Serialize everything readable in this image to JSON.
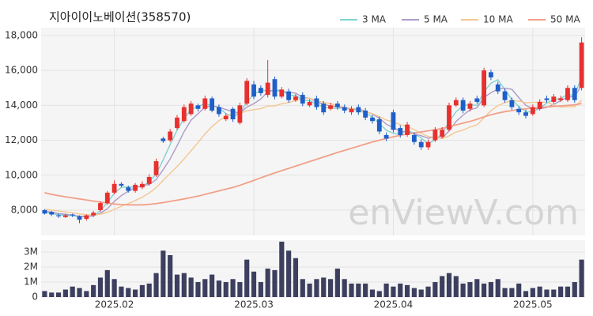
{
  "chart_data": {
    "type": "candlestick",
    "title": "지아이이노베이션(358570)",
    "watermark": "enViewV.com",
    "categories": [
      null,
      null,
      null,
      null,
      null,
      null,
      null,
      null,
      null,
      null,
      "2025.02",
      null,
      null,
      null,
      null,
      null,
      null,
      null,
      null,
      null,
      null,
      null,
      null,
      null,
      null,
      null,
      null,
      null,
      null,
      null,
      "2025.03",
      null,
      null,
      null,
      null,
      null,
      null,
      null,
      null,
      null,
      null,
      null,
      null,
      null,
      null,
      null,
      null,
      null,
      null,
      null,
      "2025.04",
      null,
      null,
      null,
      null,
      null,
      null,
      null,
      null,
      null,
      null,
      null,
      null,
      null,
      null,
      null,
      null,
      null,
      null,
      null,
      "2025.05",
      null,
      null,
      null,
      null,
      null,
      null,
      null
    ],
    "open": [
      8000,
      7900,
      7700,
      7600,
      7750,
      7650,
      7500,
      7700,
      8000,
      8400,
      9000,
      9500,
      9300,
      9100,
      9300,
      9500,
      10000,
      12100,
      12000,
      12700,
      13100,
      13500,
      14000,
      13800,
      14400,
      13900,
      13200,
      13800,
      13000,
      14100,
      15200,
      15000,
      14600,
      15500,
      14500,
      14800,
      14300,
      14600,
      14000,
      14400,
      14100,
      13800,
      14100,
      13900,
      13600,
      13900,
      13700,
      13300,
      13200,
      12300,
      13600,
      12700,
      12300,
      12300,
      11900,
      11600,
      12000,
      12200,
      12600,
      14000,
      14300,
      13800,
      14400,
      14000,
      15900,
      15200,
      14800,
      14300,
      13800,
      13600,
      13500,
      13800,
      14400,
      14200,
      14300,
      14300,
      15000,
      15000
    ],
    "high": [
      8050,
      7950,
      7800,
      7800,
      7800,
      7700,
      7750,
      7950,
      8500,
      9100,
      9700,
      9600,
      9400,
      9550,
      9650,
      10050,
      10950,
      12200,
      12650,
      13450,
      14050,
      14250,
      14100,
      14550,
      14500,
      14050,
      13550,
      13900,
      14150,
      15550,
      15400,
      15150,
      16600,
      15650,
      15050,
      14950,
      14650,
      14750,
      14350,
      14550,
      14250,
      14150,
      14250,
      14050,
      13950,
      14050,
      13850,
      13450,
      13350,
      12450,
      13750,
      12850,
      13050,
      12450,
      12050,
      12050,
      12750,
      12750,
      14150,
      14450,
      14450,
      14250,
      14550,
      16150,
      16050,
      15350,
      14950,
      14450,
      13950,
      13750,
      14050,
      14350,
      14550,
      14650,
      14550,
      15150,
      15150,
      17900
    ],
    "low": [
      7750,
      7650,
      7550,
      7550,
      7600,
      7250,
      7400,
      7600,
      7900,
      8300,
      8900,
      9300,
      9000,
      9000,
      9200,
      9400,
      9900,
      11850,
      11900,
      12600,
      13000,
      13400,
      13650,
      13700,
      13600,
      13350,
      13100,
      13050,
      12900,
      14000,
      14350,
      14550,
      14450,
      14350,
      14400,
      14150,
      14200,
      13950,
      13900,
      13750,
      13450,
      13700,
      13750,
      13550,
      13450,
      13450,
      13150,
      12950,
      12350,
      11950,
      12450,
      12150,
      12200,
      11750,
      11450,
      11450,
      11900,
      12100,
      12500,
      13900,
      13550,
      13650,
      14100,
      13900,
      15450,
      14650,
      14150,
      13750,
      13450,
      13250,
      13400,
      13700,
      14150,
      14100,
      14200,
      14200,
      14150,
      14850
    ],
    "close": [
      7800,
      7750,
      7650,
      7700,
      7700,
      7450,
      7700,
      7850,
      8400,
      9000,
      9500,
      9400,
      9100,
      9450,
      9500,
      9900,
      10800,
      11950,
      12500,
      13300,
      13900,
      14100,
      13800,
      14400,
      13700,
      13500,
      13400,
      13200,
      14000,
      15400,
      14500,
      14700,
      15300,
      14500,
      14900,
      14300,
      14500,
      14100,
      14200,
      13900,
      13600,
      14000,
      13900,
      13700,
      13800,
      13600,
      13300,
      13100,
      12500,
      12100,
      12600,
      12300,
      12900,
      11900,
      11600,
      11900,
      12600,
      12600,
      14000,
      14300,
      13700,
      14100,
      14200,
      16000,
      15600,
      14800,
      14300,
      13900,
      13600,
      13400,
      13900,
      14200,
      14300,
      14500,
      14400,
      15000,
      14300,
      17600
    ],
    "up_color": "#e8302e",
    "down_color": "#1f5fc9",
    "ylim": [
      6550,
      18450
    ],
    "yticks": [
      {
        "value": 8000,
        "label": "8,000"
      },
      {
        "value": 10000,
        "label": "10,000"
      },
      {
        "value": 12000,
        "label": "12,000"
      },
      {
        "value": 14000,
        "label": "14,000"
      },
      {
        "value": 16000,
        "label": "16,000"
      },
      {
        "value": 18000,
        "label": "18,000"
      }
    ],
    "grid": true,
    "legend": "top-right",
    "series": [
      {
        "name": "3 MA",
        "color": "#7fd3d1",
        "values": [
          7900,
          7800,
          7730,
          7700,
          7680,
          7620,
          7620,
          7670,
          7980,
          8420,
          8970,
          9300,
          9330,
          9320,
          9350,
          9620,
          10070,
          10880,
          11750,
          12580,
          13230,
          13770,
          13930,
          14100,
          13970,
          13870,
          13530,
          13370,
          13530,
          14200,
          14630,
          14870,
          14830,
          14830,
          14900,
          14570,
          14570,
          14300,
          14270,
          14070,
          13900,
          13830,
          13830,
          13870,
          13800,
          13700,
          13570,
          13330,
          12970,
          12570,
          12400,
          12330,
          12600,
          12370,
          12130,
          11800,
          12030,
          12370,
          13070,
          13630,
          14000,
          14030,
          14000,
          14770,
          15270,
          15470,
          14900,
          14330,
          13930,
          13630,
          13630,
          13830,
          14130,
          14330,
          14400,
          14630,
          14570,
          15630
        ]
      },
      {
        "name": "5 MA",
        "color": "#ab9bc8",
        "values": [
          7950,
          7880,
          7800,
          7760,
          7720,
          7650,
          7640,
          7680,
          7820,
          8080,
          8500,
          8830,
          9080,
          9290,
          9390,
          9470,
          9750,
          10320,
          10930,
          11690,
          12490,
          13150,
          13520,
          13900,
          13980,
          13900,
          13760,
          13640,
          13560,
          13900,
          14100,
          14360,
          14780,
          14880,
          14780,
          14740,
          14700,
          14460,
          14400,
          14200,
          14060,
          13960,
          13920,
          13820,
          13800,
          13800,
          13660,
          13500,
          13260,
          12920,
          12720,
          12520,
          12480,
          12360,
          12260,
          12120,
          12180,
          12120,
          12540,
          13080,
          13440,
          13740,
          13860,
          14460,
          14720,
          14940,
          14980,
          14920,
          14440,
          14000,
          13820,
          13800,
          13880,
          14060,
          14260,
          14480,
          14500,
          15160
        ]
      },
      {
        "name": "10 MA",
        "color": "#f5c690",
        "values": [
          8050,
          8000,
          7950,
          7900,
          7850,
          7780,
          7740,
          7720,
          7770,
          7870,
          8050,
          8220,
          8370,
          8550,
          8740,
          8980,
          9290,
          9700,
          10110,
          10500,
          10930,
          11400,
          11870,
          12360,
          12780,
          13120,
          13380,
          13510,
          13530,
          13690,
          13750,
          13810,
          13960,
          13970,
          14090,
          14160,
          14280,
          14390,
          14410,
          14260,
          14170,
          14100,
          13970,
          13890,
          13820,
          13750,
          13630,
          13530,
          13350,
          13160,
          13060,
          12890,
          12790,
          12610,
          12390,
          12220,
          12150,
          12100,
          12250,
          12470,
          12580,
          12760,
          12880,
          13290,
          13690,
          13980,
          14150,
          14280,
          14240,
          14150,
          14170,
          14180,
          14190,
          14020,
          13900,
          13920,
          13920,
          14290
        ]
      },
      {
        "name": "50 MA",
        "color": "#f2a089",
        "values": [
          9000,
          8900,
          8830,
          8760,
          8700,
          8640,
          8580,
          8520,
          8460,
          8400,
          8350,
          8320,
          8300,
          8300,
          8300,
          8330,
          8370,
          8430,
          8500,
          8570,
          8640,
          8720,
          8800,
          8900,
          9000,
          9100,
          9200,
          9300,
          9420,
          9560,
          9700,
          9850,
          9990,
          10130,
          10260,
          10390,
          10520,
          10650,
          10780,
          10910,
          11040,
          11170,
          11300,
          11420,
          11540,
          11660,
          11780,
          11900,
          12000,
          12100,
          12200,
          12280,
          12360,
          12420,
          12480,
          12540,
          12600,
          12680,
          12780,
          12880,
          12980,
          13080,
          13200,
          13340,
          13460,
          13560,
          13640,
          13700,
          13760,
          13800,
          13840,
          13880,
          13910,
          13940,
          13970,
          14000,
          14030,
          14100
        ]
      }
    ],
    "volume": {
      "color": "#3d3f5f",
      "values": [
        400000,
        300000,
        300000,
        500000,
        700000,
        600000,
        400000,
        800000,
        1300000,
        1800000,
        1200000,
        700000,
        600000,
        500000,
        800000,
        900000,
        1600000,
        3100000,
        2800000,
        1500000,
        1600000,
        1300000,
        1000000,
        1200000,
        1500000,
        1100000,
        1000000,
        1200000,
        1000000,
        2500000,
        1700000,
        1000000,
        1900000,
        1800000,
        3700000,
        3100000,
        2600000,
        1200000,
        900000,
        1200000,
        1300000,
        1200000,
        1900000,
        1200000,
        900000,
        900000,
        900000,
        500000,
        400000,
        900000,
        700000,
        900000,
        800000,
        600000,
        500000,
        700000,
        1000000,
        1400000,
        1600000,
        1400000,
        900000,
        1000000,
        1200000,
        900000,
        1000000,
        1200000,
        600000,
        600000,
        900000,
        400000,
        600000,
        700000,
        500000,
        500000,
        700000,
        700000,
        1000000,
        2500000
      ],
      "ylim": [
        0,
        3800000
      ],
      "yticks": [
        0,
        {
          "value": 1000000,
          "label": "1M"
        },
        {
          "value": 2000000,
          "label": "2M"
        },
        {
          "value": 3000000,
          "label": "3M"
        }
      ]
    }
  }
}
